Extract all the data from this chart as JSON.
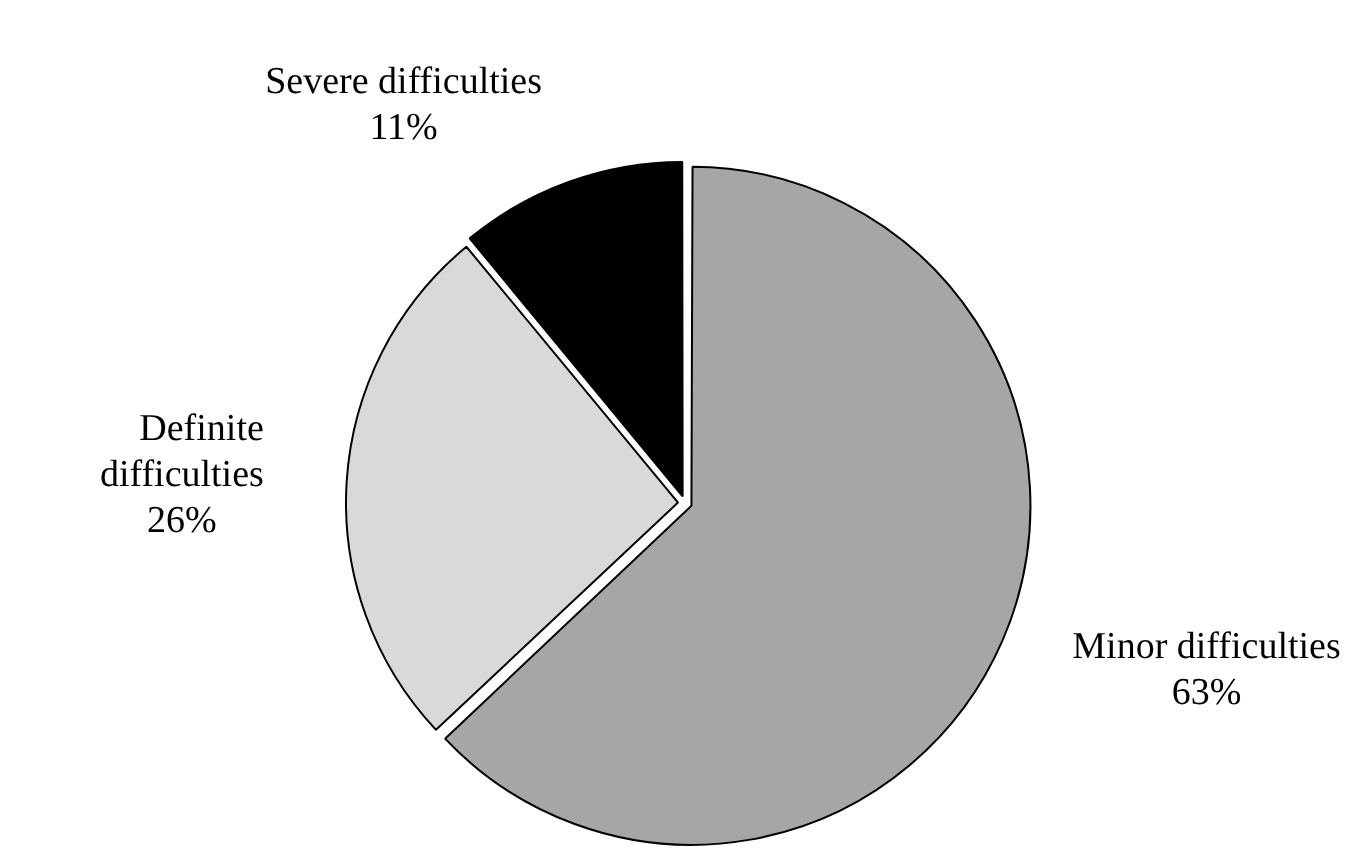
{
  "chart_data": {
    "type": "pie",
    "categories": [
      "Minor difficulties",
      "Definite difficulties",
      "Severe difficulties"
    ],
    "values": [
      63,
      26,
      11
    ],
    "colors": [
      "#a6a6a6",
      "#d9d9d9",
      "#000000"
    ],
    "value_labels": [
      "63%",
      "26%",
      "11%"
    ],
    "legend": false
  }
}
